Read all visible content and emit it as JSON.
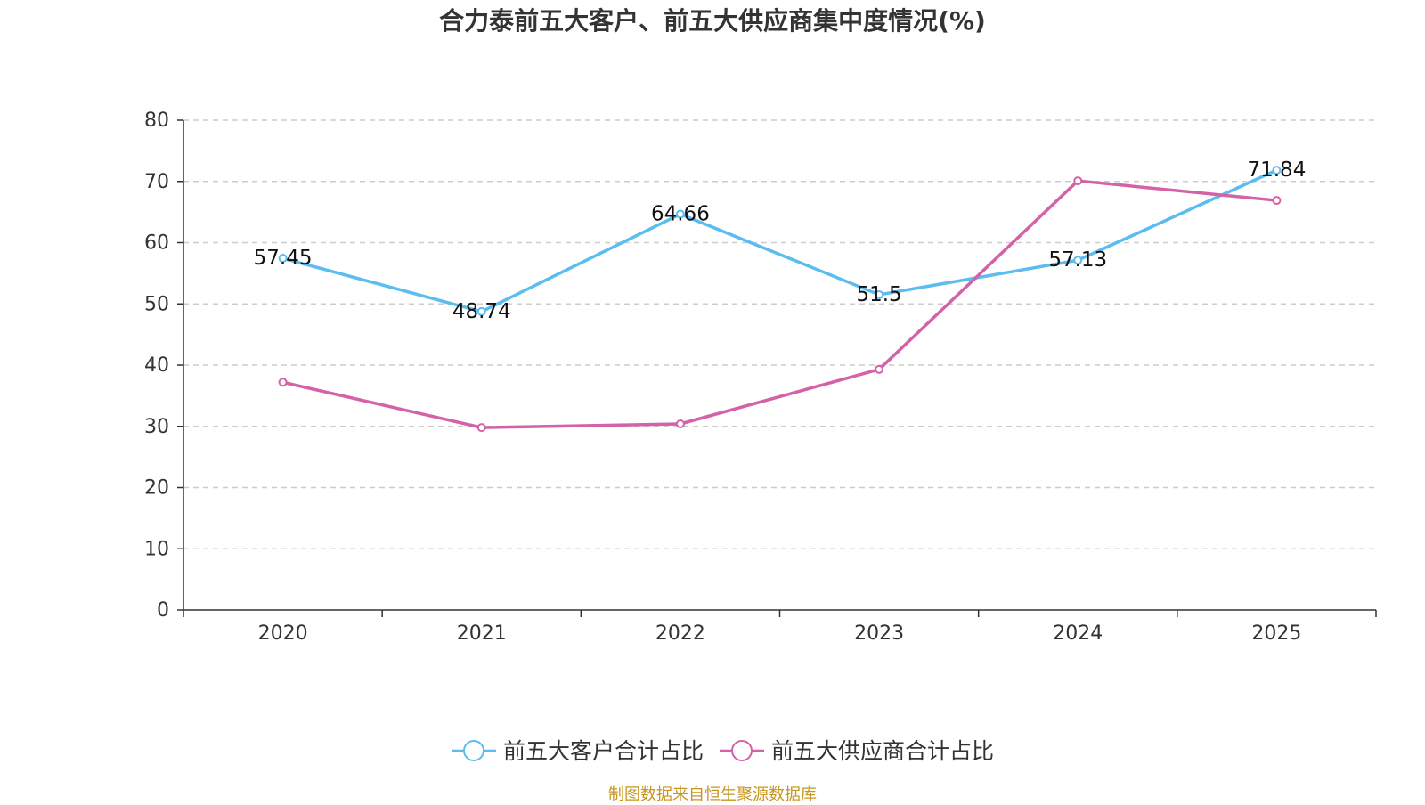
{
  "chart_data": {
    "type": "line",
    "title": "合力泰前五大客户、前五大供应商集中度情况(%)",
    "categories": [
      "2020",
      "2021",
      "2022",
      "2023",
      "2024",
      "2025"
    ],
    "ylim": [
      0,
      80
    ],
    "yticks": [
      0,
      10,
      20,
      30,
      40,
      50,
      60,
      70,
      80
    ],
    "grid": true,
    "legend_position": "bottom-center",
    "series": [
      {
        "name": "前五大客户合计占比",
        "color": "#5bbcf0",
        "values": [
          57.45,
          48.74,
          64.66,
          51.5,
          57.13,
          71.84
        ],
        "labels": [
          "57.45",
          "48.74",
          "64.66",
          "51.5",
          "57.13",
          "71.84"
        ],
        "show_labels": true
      },
      {
        "name": "前五大供应商合计占比",
        "color": "#d462a8",
        "values": [
          37.2,
          29.8,
          30.4,
          39.3,
          70.1,
          66.9
        ],
        "show_labels": false
      }
    ],
    "source": "制图数据来自恒生聚源数据库",
    "source_color": "#c8961e"
  }
}
